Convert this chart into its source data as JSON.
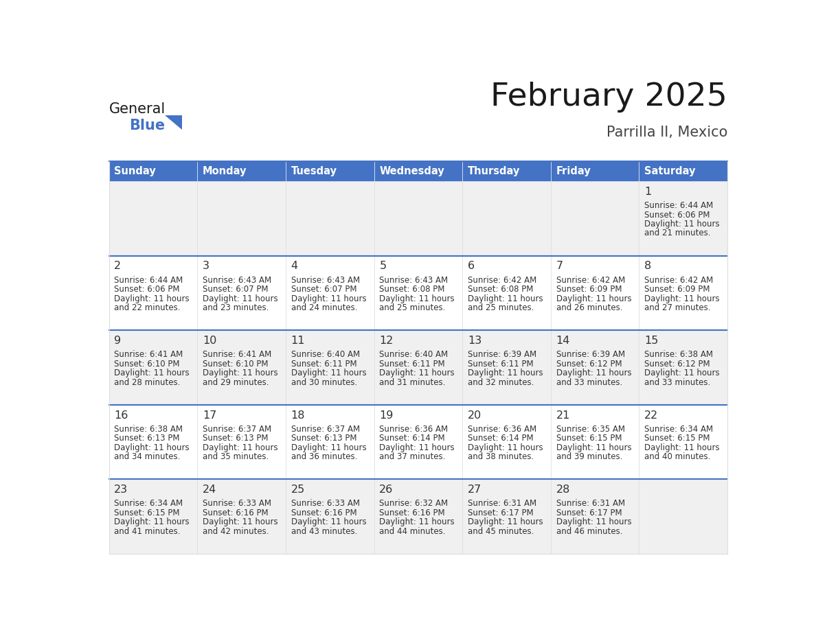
{
  "title": "February 2025",
  "subtitle": "Parrilla II, Mexico",
  "days_of_week": [
    "Sunday",
    "Monday",
    "Tuesday",
    "Wednesday",
    "Thursday",
    "Friday",
    "Saturday"
  ],
  "header_bg": "#4472C4",
  "header_text_color": "#FFFFFF",
  "cell_bg_light": "#F0F0F0",
  "cell_bg_white": "#FFFFFF",
  "cell_border_top_color": "#4472C4",
  "cell_border_color": "#DDDDDD",
  "title_color": "#1a1a1a",
  "subtitle_color": "#444444",
  "day_number_color": "#333333",
  "cell_text_color": "#333333",
  "blue_color": "#4472C4",
  "general_black_color": "#1a1a1a",
  "calendar_data": [
    [
      null,
      null,
      null,
      null,
      null,
      null,
      {
        "day": 1,
        "sunrise": "6:44 AM",
        "sunset": "6:06 PM",
        "daylight": "11 hours and 21 minutes."
      }
    ],
    [
      {
        "day": 2,
        "sunrise": "6:44 AM",
        "sunset": "6:06 PM",
        "daylight": "11 hours and 22 minutes."
      },
      {
        "day": 3,
        "sunrise": "6:43 AM",
        "sunset": "6:07 PM",
        "daylight": "11 hours and 23 minutes."
      },
      {
        "day": 4,
        "sunrise": "6:43 AM",
        "sunset": "6:07 PM",
        "daylight": "11 hours and 24 minutes."
      },
      {
        "day": 5,
        "sunrise": "6:43 AM",
        "sunset": "6:08 PM",
        "daylight": "11 hours and 25 minutes."
      },
      {
        "day": 6,
        "sunrise": "6:42 AM",
        "sunset": "6:08 PM",
        "daylight": "11 hours and 25 minutes."
      },
      {
        "day": 7,
        "sunrise": "6:42 AM",
        "sunset": "6:09 PM",
        "daylight": "11 hours and 26 minutes."
      },
      {
        "day": 8,
        "sunrise": "6:42 AM",
        "sunset": "6:09 PM",
        "daylight": "11 hours and 27 minutes."
      }
    ],
    [
      {
        "day": 9,
        "sunrise": "6:41 AM",
        "sunset": "6:10 PM",
        "daylight": "11 hours and 28 minutes."
      },
      {
        "day": 10,
        "sunrise": "6:41 AM",
        "sunset": "6:10 PM",
        "daylight": "11 hours and 29 minutes."
      },
      {
        "day": 11,
        "sunrise": "6:40 AM",
        "sunset": "6:11 PM",
        "daylight": "11 hours and 30 minutes."
      },
      {
        "day": 12,
        "sunrise": "6:40 AM",
        "sunset": "6:11 PM",
        "daylight": "11 hours and 31 minutes."
      },
      {
        "day": 13,
        "sunrise": "6:39 AM",
        "sunset": "6:11 PM",
        "daylight": "11 hours and 32 minutes."
      },
      {
        "day": 14,
        "sunrise": "6:39 AM",
        "sunset": "6:12 PM",
        "daylight": "11 hours and 33 minutes."
      },
      {
        "day": 15,
        "sunrise": "6:38 AM",
        "sunset": "6:12 PM",
        "daylight": "11 hours and 33 minutes."
      }
    ],
    [
      {
        "day": 16,
        "sunrise": "6:38 AM",
        "sunset": "6:13 PM",
        "daylight": "11 hours and 34 minutes."
      },
      {
        "day": 17,
        "sunrise": "6:37 AM",
        "sunset": "6:13 PM",
        "daylight": "11 hours and 35 minutes."
      },
      {
        "day": 18,
        "sunrise": "6:37 AM",
        "sunset": "6:13 PM",
        "daylight": "11 hours and 36 minutes."
      },
      {
        "day": 19,
        "sunrise": "6:36 AM",
        "sunset": "6:14 PM",
        "daylight": "11 hours and 37 minutes."
      },
      {
        "day": 20,
        "sunrise": "6:36 AM",
        "sunset": "6:14 PM",
        "daylight": "11 hours and 38 minutes."
      },
      {
        "day": 21,
        "sunrise": "6:35 AM",
        "sunset": "6:15 PM",
        "daylight": "11 hours and 39 minutes."
      },
      {
        "day": 22,
        "sunrise": "6:34 AM",
        "sunset": "6:15 PM",
        "daylight": "11 hours and 40 minutes."
      }
    ],
    [
      {
        "day": 23,
        "sunrise": "6:34 AM",
        "sunset": "6:15 PM",
        "daylight": "11 hours and 41 minutes."
      },
      {
        "day": 24,
        "sunrise": "6:33 AM",
        "sunset": "6:16 PM",
        "daylight": "11 hours and 42 minutes."
      },
      {
        "day": 25,
        "sunrise": "6:33 AM",
        "sunset": "6:16 PM",
        "daylight": "11 hours and 43 minutes."
      },
      {
        "day": 26,
        "sunrise": "6:32 AM",
        "sunset": "6:16 PM",
        "daylight": "11 hours and 44 minutes."
      },
      {
        "day": 27,
        "sunrise": "6:31 AM",
        "sunset": "6:17 PM",
        "daylight": "11 hours and 45 minutes."
      },
      {
        "day": 28,
        "sunrise": "6:31 AM",
        "sunset": "6:17 PM",
        "daylight": "11 hours and 46 minutes."
      },
      null
    ]
  ]
}
